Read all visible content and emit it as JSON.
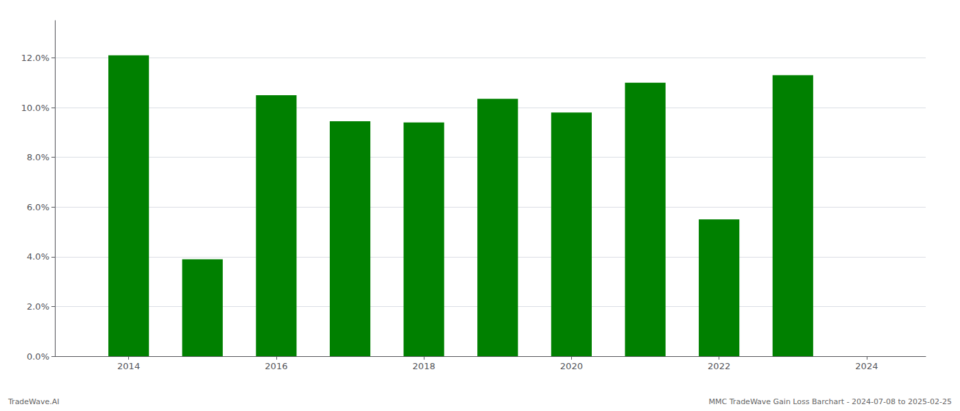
{
  "chart_data": {
    "type": "bar",
    "x": [
      2014,
      2015,
      2016,
      2017,
      2018,
      2019,
      2020,
      2021,
      2022,
      2023
    ],
    "values": [
      0.121,
      0.039,
      0.105,
      0.0945,
      0.094,
      0.1035,
      0.098,
      0.11,
      0.055,
      0.113
    ],
    "color": "#008000",
    "xlim": [
      2013.0,
      2024.8
    ],
    "xticks": [
      2014,
      2016,
      2018,
      2020,
      2022,
      2024
    ],
    "ylim": [
      0,
      0.135
    ],
    "yticks": [
      {
        "value": 0.0,
        "label": "0.0%"
      },
      {
        "value": 0.02,
        "label": "2.0%"
      },
      {
        "value": 0.04,
        "label": "4.0%"
      },
      {
        "value": 0.06,
        "label": "6.0%"
      },
      {
        "value": 0.08,
        "label": "8.0%"
      },
      {
        "value": 0.1,
        "label": "10.0%"
      },
      {
        "value": 0.12,
        "label": "12.0%"
      }
    ],
    "grid": true,
    "annotations": [
      "TradeWave.AI",
      "MMC TradeWave Gain Loss Barchart - 2024-07-08 to 2025-02-25"
    ]
  }
}
